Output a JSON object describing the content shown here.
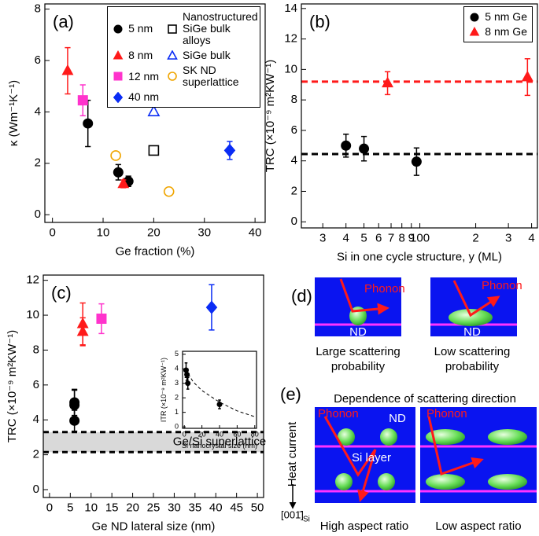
{
  "chart_data": [
    {
      "type": "scatter",
      "label": "(a)",
      "xlabel": "Ge fraction (%)",
      "ylabel": "κ (Wm⁻¹K⁻¹)",
      "xlim": [
        -1.5,
        42
      ],
      "ylim": [
        -0.3,
        8.2
      ],
      "xticks": [
        0,
        10,
        20,
        30,
        40
      ],
      "yticks": [
        0,
        2,
        4,
        6,
        8
      ],
      "legend": "upper right",
      "series": [
        {
          "name": "5 nm",
          "color": "#000000",
          "marker": "circle",
          "x": [
            7,
            13,
            15
          ],
          "y": [
            3.55,
            1.65,
            1.3
          ],
          "errors": [
            0.9,
            0.3,
            0.2
          ]
        },
        {
          "name": "8 nm",
          "color": "#ff1a1a",
          "marker": "triangle",
          "x": [
            3,
            14
          ],
          "y": [
            5.6,
            1.2
          ],
          "errors": [
            0.9,
            0.15
          ]
        },
        {
          "name": "12 nm",
          "color": "#ff33cc",
          "marker": "square",
          "x": [
            6
          ],
          "y": [
            4.45
          ],
          "errors": [
            0.6
          ]
        },
        {
          "name": "40 nm",
          "color": "#0a2cf5",
          "marker": "diamond",
          "x": [
            35
          ],
          "y": [
            2.5
          ],
          "errors": [
            0.35
          ]
        },
        {
          "name": "Nanostructured SiGe bulk alloys",
          "color": "#000000",
          "marker": "open-square",
          "x": [
            20
          ],
          "y": [
            2.5
          ]
        },
        {
          "name": "SiGe bulk",
          "color": "#0a2cf5",
          "marker": "open-triangle",
          "x": [
            20
          ],
          "y": [
            4.0
          ]
        },
        {
          "name": "SK ND superlattice",
          "color": "#f0a500",
          "marker": "open-circle",
          "x": [
            12.5,
            23
          ],
          "y": [
            2.3,
            0.9
          ]
        }
      ]
    },
    {
      "type": "scatter",
      "label": "(b)",
      "xlabel": "Si in one cycle structure, y (ML)",
      "ylabel": "TRC (×10⁻⁹ m²KW⁻¹)",
      "xscale": "log",
      "xlim": [
        23,
        430
      ],
      "ylim": [
        -0.4,
        14.3
      ],
      "xticks": [
        {
          "value": 30,
          "label": "3"
        },
        {
          "value": 40,
          "label": "4"
        },
        {
          "value": 50,
          "label": "5"
        },
        {
          "value": 60,
          "label": "6"
        },
        {
          "value": 70,
          "label": "7"
        },
        {
          "value": 80,
          "label": "8"
        },
        {
          "value": 90,
          "label": "9"
        },
        100,
        {
          "value": 200,
          "label": "2"
        },
        {
          "value": 300,
          "label": "3"
        },
        {
          "value": 400,
          "label": "4"
        }
      ],
      "yticks": [
        0,
        2,
        4,
        6,
        8,
        10,
        12,
        14
      ],
      "legend": "upper right",
      "hlines": [
        {
          "value": 4.45,
          "color": "#000000"
        },
        {
          "value": 9.2,
          "color": "#ff1a1a"
        }
      ],
      "series": [
        {
          "name": "5 nm Ge",
          "color": "#000000",
          "marker": "circle",
          "x": [
            40,
            50,
            96
          ],
          "y": [
            5.0,
            4.8,
            3.95
          ],
          "errors": [
            0.75,
            0.8,
            0.9
          ]
        },
        {
          "name": "8 nm Ge",
          "color": "#ff1a1a",
          "marker": "triangle",
          "x": [
            67,
            380
          ],
          "y": [
            9.1,
            9.5
          ],
          "errors": [
            0.75,
            1.2
          ]
        }
      ]
    },
    {
      "type": "scatter",
      "label": "(c)",
      "xlabel": "Ge ND lateral size (nm)",
      "ylabel": "TRC (×10⁻⁹ m²KW⁻¹)",
      "xlim": [
        -1.5,
        51.5
      ],
      "ylim": [
        -0.45,
        12.3
      ],
      "xticks": [
        0,
        5,
        10,
        15,
        20,
        25,
        30,
        35,
        40,
        45,
        50
      ],
      "yticks": [
        0,
        2,
        4,
        6,
        8,
        10,
        12
      ],
      "band": {
        "range": [
          2.15,
          3.3
        ],
        "label": "Ge/Si superlattice",
        "color": "#d9d9d9"
      },
      "series": [
        {
          "color": "#000000",
          "marker": "circle",
          "x": [
            6,
            6,
            6
          ],
          "y": [
            5.0,
            4.85,
            3.95
          ],
          "errors": [
            0.75,
            0.85,
            0.6
          ]
        },
        {
          "color": "#ff1a1a",
          "marker": "triangle",
          "x": [
            8,
            8
          ],
          "y": [
            9.5,
            9.05
          ],
          "errors": [
            1.2,
            0.8
          ]
        },
        {
          "color": "#ff33cc",
          "marker": "square",
          "x": [
            12.5
          ],
          "y": [
            9.8
          ],
          "errors": [
            0.85
          ]
        },
        {
          "color": "#0a2cf5",
          "marker": "diamond",
          "x": [
            39
          ],
          "y": [
            10.45
          ],
          "errors": [
            1.3
          ]
        }
      ],
      "inset": {
        "type": "scatter",
        "xlabel": "Si nanocrystal size (nm)",
        "ylabel": "ITR (×10⁻⁹ m²KW⁻¹)",
        "xlim": [
          -2,
          82
        ],
        "ylim": [
          -0.1,
          5.2
        ],
        "xticks": [
          0,
          20,
          40,
          60,
          80
        ],
        "yticks": [
          0,
          1,
          2,
          3,
          4,
          5
        ],
        "curve": {
          "color": "#000000",
          "x": [
            2,
            5,
            10,
            20,
            30,
            40,
            50,
            60,
            70,
            80
          ],
          "y": [
            4.0,
            3.6,
            3.1,
            2.5,
            2.1,
            1.7,
            1.4,
            1.1,
            0.9,
            0.7
          ]
        },
        "series": [
          {
            "color": "#000000",
            "marker": "circle",
            "x": [
              2,
              3,
              4,
              40
            ],
            "y": [
              3.9,
              3.6,
              3.0,
              1.55
            ],
            "errors": [
              0.5,
              0.4,
              0.4,
              0.3
            ]
          }
        ]
      }
    }
  ],
  "diagrams": {
    "d": {
      "label": "(d)",
      "left": {
        "phonon": "Phonon",
        "nd": "ND",
        "caption": [
          "Large scattering",
          "probability"
        ]
      },
      "right": {
        "phonon": "Phonon",
        "nd": "ND",
        "caption": [
          "Low scattering",
          "probability"
        ]
      }
    },
    "e": {
      "label": "(e)",
      "title": "Dependence of scattering direction",
      "heat": "Heat current",
      "direction": "[001̄]",
      "direction_sub": "Si",
      "left": {
        "phonon": "Phonon",
        "nd": "ND",
        "layer": "Si layer",
        "caption": "High aspect ratio"
      },
      "right": {
        "phonon": "Phonon",
        "caption": "Low aspect ratio"
      }
    }
  }
}
